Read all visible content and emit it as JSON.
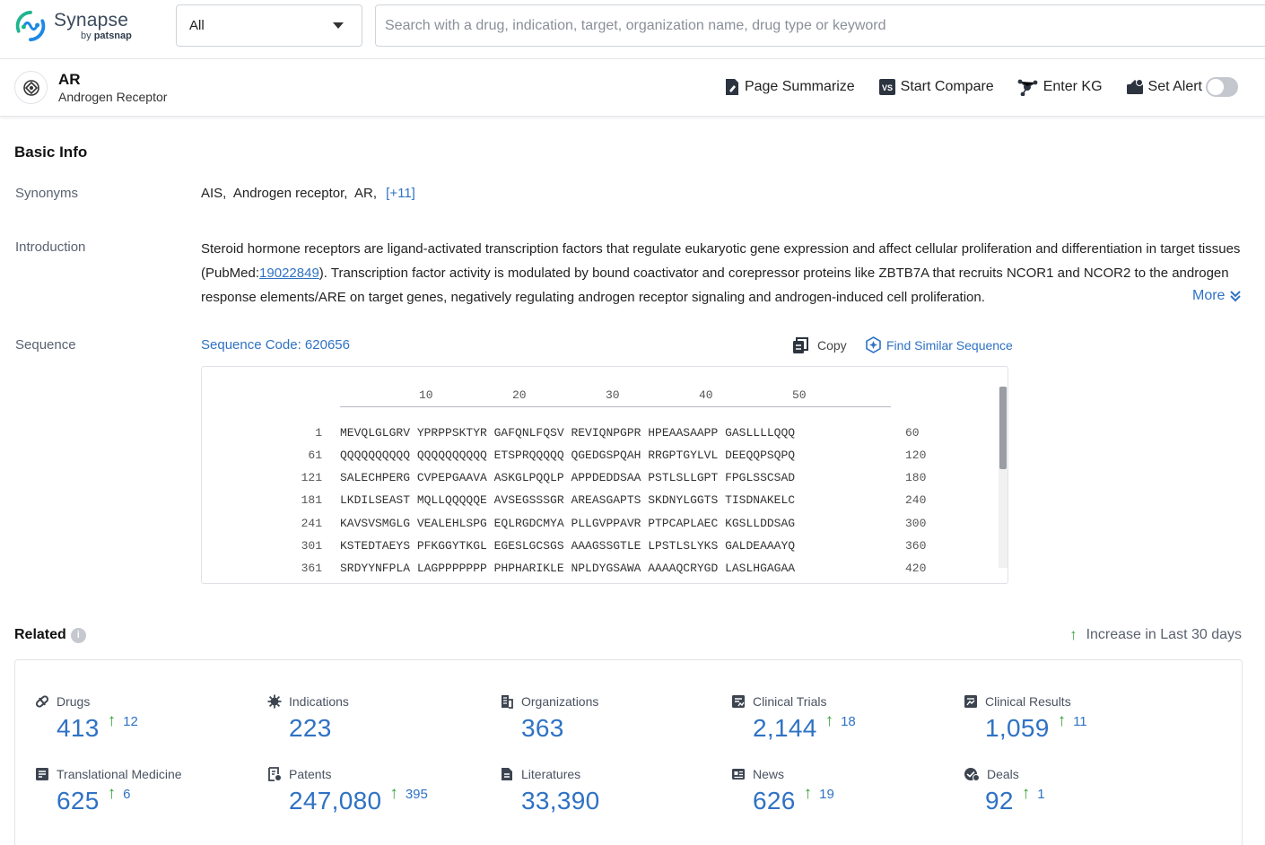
{
  "app": {
    "name": "Synapse",
    "by": "by",
    "brand": "patsnap"
  },
  "search": {
    "scope": "All",
    "placeholder": "Search with a drug, indication, target, organization name, drug type or keyword"
  },
  "target": {
    "symbol": "AR",
    "full_name": "Androgen Receptor"
  },
  "actions": {
    "summarize": "Page Summarize",
    "compare": "Start Compare",
    "kg": "Enter KG",
    "alert": "Set Alert"
  },
  "basic_info": {
    "title": "Basic Info",
    "synonyms_label": "Synonyms",
    "synonyms": [
      "AIS,",
      "Androgen receptor,",
      "AR,"
    ],
    "synonyms_more": "[+11]",
    "intro_label": "Introduction",
    "intro_before_link": "Steroid hormone receptors are ligand-activated transcription factors that regulate eukaryotic gene expression and affect cellular proliferation and differentiation in target tissues (PubMed:",
    "intro_link": "19022849",
    "intro_after_link": "). Transcription factor activity is modulated by bound coactivator and corepressor proteins like ZBTB7A that recruits NCOR1 and NCOR2 to the androgen response elements/ARE on target genes, negatively regulating androgen receptor signaling and androgen-induced cell proliferation.",
    "more": "More",
    "sequence_label": "Sequence",
    "sequence_code": "Sequence Code: 620656",
    "copy": "Copy",
    "find_similar": "Find Similar Sequence"
  },
  "sequence": {
    "ticks": [
      "10",
      "20",
      "30",
      "40",
      "50"
    ],
    "rows": [
      {
        "start": "1",
        "seq": "MEVQLGLGRV YPRPPSKTYR GAFQNLFQSV REVIQNPGPR HPEAASAAPP GASLLLLQQQ",
        "end": "60"
      },
      {
        "start": "61",
        "seq": "QQQQQQQQQQ QQQQQQQQQQ ETSPRQQQQQ QGEDGSPQAH RRGPTGYLVL DEEQQPSQPQ",
        "end": "120"
      },
      {
        "start": "121",
        "seq": "SALECHPERG CVPEPGAAVA ASKGLPQQLP APPDEDDSAA PSTLSLLGPT FPGLSSCSAD",
        "end": "180"
      },
      {
        "start": "181",
        "seq": "LKDILSEAST MQLLQQQQQE AVSEGSSSGR AREASGAPTS SKDNYLGGTS TISDNAKELC",
        "end": "240"
      },
      {
        "start": "241",
        "seq": "KAVSVSMGLG VEALEHLSPG EQLRGDCMYA PLLGVPPAVR PTPCAPLAEC KGSLLDDSAG",
        "end": "300"
      },
      {
        "start": "301",
        "seq": "KSTEDTAEYS PFKGGYTKGL EGESLGCSGS AAAGSSGTLE LPSTLSLYKS GALDEAAAYQ",
        "end": "360"
      },
      {
        "start": "361",
        "seq": "SRDYYNFPLA LAGPPPPPPP PHPHARIKLE NPLDYGSAWA AAAAQCRYGD LASLHGAGAA",
        "end": "420"
      }
    ]
  },
  "related": {
    "title": "Related",
    "legend": "Increase in Last 30 days",
    "items": [
      {
        "label": "Drugs",
        "value": "413",
        "increase": "12",
        "icon": "pill-icon"
      },
      {
        "label": "Indications",
        "value": "223",
        "increase": "",
        "icon": "virus-icon"
      },
      {
        "label": "Organizations",
        "value": "363",
        "increase": "",
        "icon": "building-icon"
      },
      {
        "label": "Clinical Trials",
        "value": "2,144",
        "increase": "18",
        "icon": "clipboard-icon"
      },
      {
        "label": "Clinical Results",
        "value": "1,059",
        "increase": "11",
        "icon": "chart-doc-icon"
      },
      {
        "label": "Translational Medicine",
        "value": "625",
        "increase": "6",
        "icon": "book-icon"
      },
      {
        "label": "Patents",
        "value": "247,080",
        "increase": "395",
        "icon": "patent-icon"
      },
      {
        "label": "Literatures",
        "value": "33,390",
        "increase": "",
        "icon": "document-icon"
      },
      {
        "label": "News",
        "value": "626",
        "increase": "19",
        "icon": "newspaper-icon"
      },
      {
        "label": "Deals",
        "value": "92",
        "increase": "1",
        "icon": "handshake-icon"
      }
    ]
  },
  "colors": {
    "link": "#2f72c4",
    "increase": "#3aa33a",
    "logo_green": "#1fb58f",
    "logo_blue": "#1e88e5"
  }
}
